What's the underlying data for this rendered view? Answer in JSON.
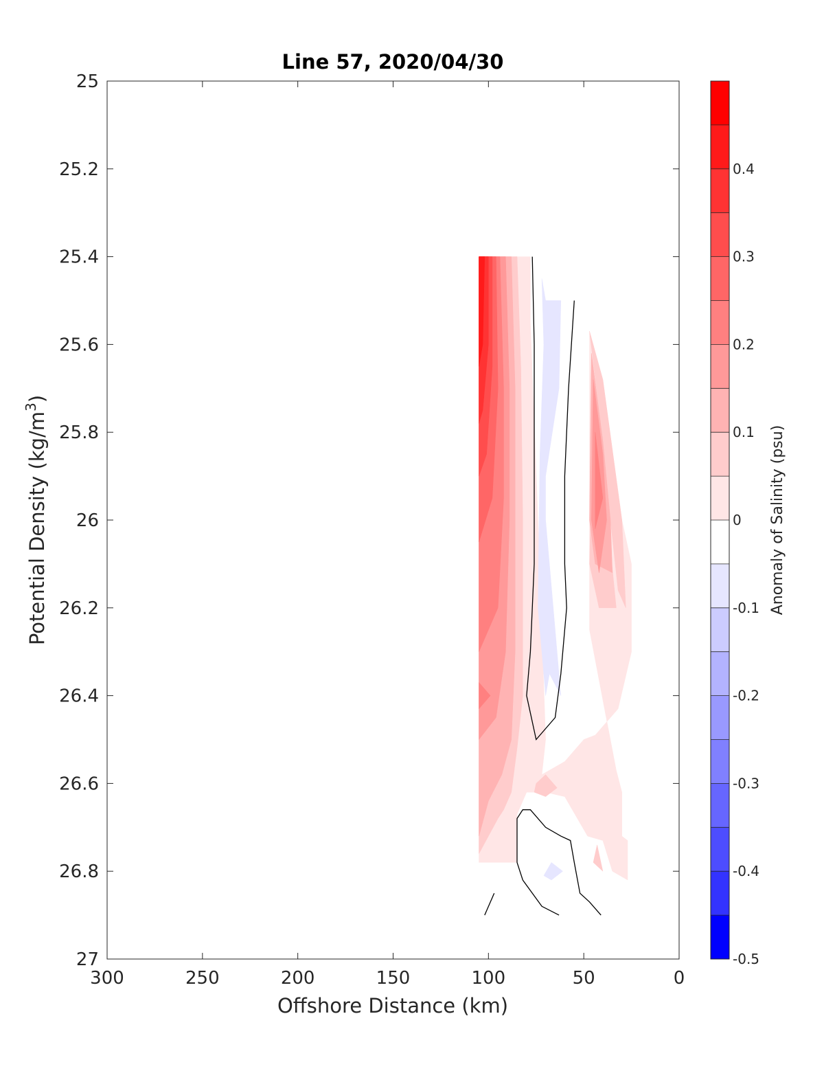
{
  "chart_data": {
    "type": "contourf",
    "title": "Line 57, 2020/04/30",
    "xlabel": "Offshore Distance (km)",
    "ylabel": "Potential Density (kg/m³)",
    "ylabel_parts": {
      "main": "Potential Density (kg/m",
      "sup": "3",
      "end": ")"
    },
    "colorbar_label": "Anomaly of Salinity (psu)",
    "xlim": [
      300,
      0
    ],
    "ylim": [
      25,
      27
    ],
    "x_reversed": true,
    "y_reversed": true,
    "xticks": [
      "300",
      "250",
      "200",
      "150",
      "100",
      "50",
      "0"
    ],
    "xtick_values": [
      300,
      250,
      200,
      150,
      100,
      50,
      0
    ],
    "yticks": [
      "25",
      "25.2",
      "25.4",
      "25.6",
      "25.8",
      "26",
      "26.2",
      "26.4",
      "26.6",
      "26.8",
      "27"
    ],
    "ytick_values": [
      25,
      25.2,
      25.4,
      25.6,
      25.8,
      26,
      26.2,
      26.4,
      26.6,
      26.8,
      27
    ],
    "colorbar": {
      "range": [
        -0.5,
        0.5
      ],
      "ticks": [
        "0.4",
        "0.3",
        "0.2",
        "0.1",
        "0",
        "-0.1",
        "-0.2",
        "-0.3",
        "-0.4",
        "-0.5"
      ],
      "tick_values": [
        0.4,
        0.3,
        0.2,
        0.1,
        0,
        -0.1,
        -0.2,
        -0.3,
        -0.4,
        -0.5
      ],
      "levels": [
        -0.5,
        -0.45,
        -0.4,
        -0.35,
        -0.3,
        -0.25,
        -0.2,
        -0.15,
        -0.1,
        -0.05,
        0,
        0.05,
        0.1,
        0.15,
        0.2,
        0.25,
        0.3,
        0.35,
        0.4,
        0.45,
        0.5
      ],
      "colors_high_to_low": [
        "#ff0000",
        "#ff1a1a",
        "#ff3333",
        "#ff4d4d",
        "#ff6666",
        "#ff8080",
        "#ff9999",
        "#ffb3b3",
        "#ffcccc",
        "#ffe6e6",
        "#ffffff",
        "#ffffff",
        "#e6e6ff",
        "#ccccff",
        "#b3b3ff",
        "#9999ff",
        "#8080ff",
        "#6666ff",
        "#4d4dff",
        "#3333ff",
        "#0000ff"
      ]
    },
    "regions": [
      {
        "color": "#ffe6e6",
        "points": [
          [
            105,
            25.4
          ],
          [
            78,
            25.4
          ],
          [
            78,
            25.55
          ],
          [
            74,
            26.0
          ],
          [
            70,
            26.5
          ],
          [
            72,
            26.58
          ],
          [
            60,
            26.55
          ],
          [
            50,
            26.5
          ],
          [
            44,
            26.49
          ],
          [
            32,
            26.43
          ],
          [
            25,
            26.3
          ],
          [
            25,
            26.1
          ],
          [
            30,
            26.0
          ],
          [
            40,
            25.68
          ],
          [
            47,
            25.57
          ],
          [
            47,
            26.25
          ],
          [
            33,
            26.57
          ],
          [
            30,
            26.62
          ],
          [
            30,
            26.72
          ],
          [
            27,
            26.73
          ],
          [
            27,
            26.82
          ],
          [
            35,
            26.8
          ],
          [
            40,
            26.73
          ],
          [
            48,
            26.72
          ],
          [
            60,
            26.63
          ],
          [
            70,
            26.62
          ],
          [
            80,
            26.62
          ],
          [
            85,
            26.67
          ],
          [
            85,
            26.78
          ],
          [
            105,
            26.78
          ]
        ]
      },
      {
        "color": "#ffcccc",
        "points": [
          [
            105,
            25.4
          ],
          [
            85,
            25.4
          ],
          [
            83,
            25.65
          ],
          [
            82,
            26.0
          ],
          [
            82,
            26.4
          ],
          [
            85,
            26.52
          ],
          [
            88,
            26.62
          ],
          [
            92,
            26.66
          ],
          [
            95,
            26.68
          ],
          [
            105,
            26.76
          ]
        ]
      },
      {
        "color": "#ffcccc",
        "points": [
          [
            47,
            25.57
          ],
          [
            42,
            25.75
          ],
          [
            36,
            26.0
          ],
          [
            32,
            26.16
          ],
          [
            28,
            26.2
          ],
          [
            30,
            26.0
          ],
          [
            40,
            25.68
          ]
        ]
      },
      {
        "color": "#ffcccc",
        "points": [
          [
            45,
            25.72
          ],
          [
            38,
            25.98
          ],
          [
            33,
            26.2
          ],
          [
            42,
            26.2
          ],
          [
            47,
            26.1
          ]
        ]
      },
      {
        "color": "#ffcccc",
        "points": [
          [
            75,
            26.6
          ],
          [
            70,
            26.58
          ],
          [
            64,
            26.61
          ],
          [
            70,
            26.63
          ],
          [
            76,
            26.62
          ]
        ]
      },
      {
        "color": "#ffcccc",
        "points": [
          [
            45,
            26.78
          ],
          [
            40,
            26.8
          ],
          [
            43,
            26.74
          ]
        ]
      },
      {
        "color": "#ffb3b3",
        "points": [
          [
            105,
            25.4
          ],
          [
            88,
            25.4
          ],
          [
            86,
            25.7
          ],
          [
            86,
            26.0
          ],
          [
            86,
            26.3
          ],
          [
            88,
            26.5
          ],
          [
            93,
            26.58
          ],
          [
            100,
            26.64
          ],
          [
            105,
            26.72
          ]
        ]
      },
      {
        "color": "#ffb3b3",
        "points": [
          [
            46,
            25.62
          ],
          [
            40,
            25.82
          ],
          [
            36,
            26.0
          ],
          [
            35,
            26.12
          ],
          [
            44,
            26.1
          ],
          [
            47,
            26.0
          ]
        ]
      },
      {
        "color": "#ff9999",
        "points": [
          [
            105,
            25.4
          ],
          [
            91,
            25.4
          ],
          [
            89,
            25.7
          ],
          [
            89,
            26.0
          ],
          [
            91,
            26.3
          ],
          [
            96,
            26.45
          ],
          [
            105,
            26.5
          ]
        ]
      },
      {
        "color": "#ff9999",
        "points": [
          [
            45,
            25.68
          ],
          [
            40,
            25.85
          ],
          [
            38,
            26.0
          ],
          [
            42,
            26.12
          ],
          [
            46,
            26.0
          ]
        ]
      },
      {
        "color": "#ff8080",
        "points": [
          [
            105,
            25.4
          ],
          [
            94,
            25.4
          ],
          [
            92,
            25.7
          ],
          [
            92,
            25.95
          ],
          [
            95,
            26.2
          ],
          [
            105,
            26.3
          ]
        ]
      },
      {
        "color": "#ff8080",
        "points": [
          [
            44,
            25.8
          ],
          [
            40,
            25.95
          ],
          [
            44,
            26.02
          ]
        ]
      },
      {
        "color": "#ff8080",
        "points": [
          [
            105,
            26.37
          ],
          [
            99,
            26.4
          ],
          [
            105,
            26.43
          ]
        ]
      },
      {
        "color": "#ff6666",
        "points": [
          [
            105,
            25.4
          ],
          [
            96,
            25.4
          ],
          [
            95,
            25.7
          ],
          [
            98,
            25.95
          ],
          [
            105,
            26.05
          ]
        ]
      },
      {
        "color": "#ff4d4d",
        "points": [
          [
            105,
            25.4
          ],
          [
            98,
            25.4
          ],
          [
            98,
            25.65
          ],
          [
            101,
            25.85
          ],
          [
            105,
            25.9
          ]
        ]
      },
      {
        "color": "#ff3333",
        "points": [
          [
            105,
            25.4
          ],
          [
            100,
            25.4
          ],
          [
            100,
            25.6
          ],
          [
            103,
            25.75
          ],
          [
            105,
            25.78
          ]
        ]
      },
      {
        "color": "#ff1a1a",
        "points": [
          [
            105,
            25.4
          ],
          [
            102,
            25.4
          ],
          [
            103,
            25.6
          ],
          [
            105,
            25.65
          ]
        ]
      },
      {
        "color": "#e6e6ff",
        "points": [
          [
            72,
            25.45
          ],
          [
            70,
            25.5
          ],
          [
            62,
            25.5
          ],
          [
            63,
            25.7
          ],
          [
            70,
            25.9
          ],
          [
            70,
            26.0
          ],
          [
            62,
            26.4
          ],
          [
            68,
            26.35
          ],
          [
            70,
            26.4
          ],
          [
            74,
            26.2
          ],
          [
            73,
            25.85
          ],
          [
            71,
            25.6
          ]
        ]
      },
      {
        "color": "#e6e6ff",
        "points": [
          [
            67,
            26.78
          ],
          [
            71,
            26.81
          ],
          [
            67,
            26.82
          ],
          [
            61,
            26.8
          ]
        ]
      }
    ],
    "zero_contours": [
      [
        [
          77,
          25.4
        ],
        [
          76,
          25.6
        ],
        [
          76,
          25.9
        ],
        [
          76,
          26.1
        ],
        [
          78,
          26.3
        ],
        [
          80,
          26.4
        ],
        [
          75,
          26.5
        ],
        [
          65,
          26.45
        ],
        [
          62,
          26.35
        ],
        [
          59,
          26.2
        ],
        [
          60,
          26.1
        ],
        [
          60,
          25.9
        ],
        [
          58,
          25.7
        ],
        [
          55,
          25.5
        ]
      ],
      [
        [
          97,
          26.85
        ],
        [
          102,
          26.9
        ]
      ],
      [
        [
          63,
          26.9
        ],
        [
          72,
          26.88
        ],
        [
          82,
          26.82
        ],
        [
          85,
          26.78
        ],
        [
          85,
          26.68
        ],
        [
          82,
          26.66
        ],
        [
          78,
          26.66
        ],
        [
          70,
          26.7
        ],
        [
          62,
          26.72
        ],
        [
          57,
          26.73
        ],
        [
          55,
          26.78
        ],
        [
          52,
          26.85
        ],
        [
          47,
          26.87
        ],
        [
          41,
          26.9
        ]
      ]
    ]
  }
}
